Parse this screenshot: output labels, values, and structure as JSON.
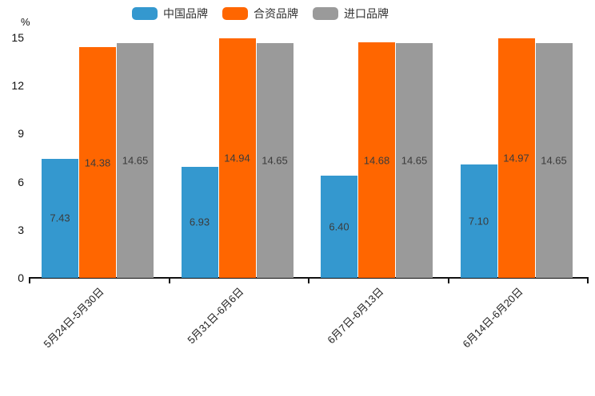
{
  "chart_data": {
    "type": "bar",
    "title": "",
    "xlabel": "",
    "ylabel": "%",
    "ylim": [
      0,
      15
    ],
    "yticks": [
      0,
      3,
      6,
      9,
      12,
      15
    ],
    "grid": false,
    "legend_position": "top",
    "data_labels": "inside-center",
    "categories": [
      "5月24日-5月30日",
      "5月31日-6月6日",
      "6月7日-6月13日",
      "6月14日-6月20日"
    ],
    "series": [
      {
        "name": "中国品牌",
        "color": "#3498cf",
        "values": [
          7.43,
          6.93,
          6.4,
          7.1
        ]
      },
      {
        "name": "合资品牌",
        "color": "#ff6600",
        "values": [
          14.38,
          14.94,
          14.68,
          14.97
        ]
      },
      {
        "name": "进口品牌",
        "color": "#9a9a9a",
        "values": [
          14.65,
          14.65,
          14.65,
          14.65
        ]
      }
    ]
  },
  "colors": {
    "background": "#ffffff",
    "axis": "#111111",
    "bar_value_text": "#3b3b3b",
    "tick_text": "#111111"
  }
}
